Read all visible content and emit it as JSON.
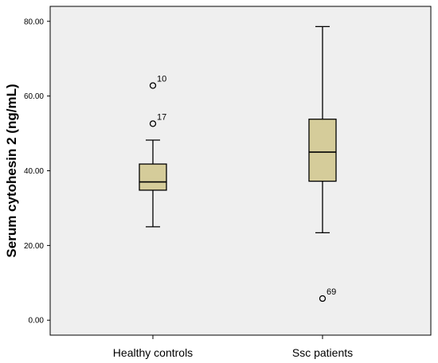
{
  "chart_data": {
    "type": "boxplot",
    "title": "",
    "xlabel": "",
    "ylabel": "Serum cytohesin 2 (ng/mL)",
    "ylim": [
      -4,
      84
    ],
    "yticks": [
      0,
      20,
      40,
      60,
      80
    ],
    "ytick_labels": [
      "0.00",
      "20.00",
      "40.00",
      "60.00",
      "80.00"
    ],
    "grid": false,
    "legend": "none",
    "colors": {
      "plot_bg": "#efefef",
      "box_fill": "#d5cc9a",
      "stroke": "#000000"
    },
    "categories": [
      "Healthy controls",
      "Ssc patients"
    ],
    "boxes": [
      {
        "category": "Healthy controls",
        "whisker_low": 25.0,
        "q1": 34.8,
        "median": 37.0,
        "q3": 41.8,
        "whisker_high": 48.2,
        "outliers": [
          {
            "value": 62.8,
            "label": "10"
          },
          {
            "value": 52.6,
            "label": "17"
          }
        ]
      },
      {
        "category": "Ssc patients",
        "whisker_low": 23.4,
        "q1": 37.2,
        "median": 45.0,
        "q3": 53.8,
        "whisker_high": 78.6,
        "outliers": [
          {
            "value": 5.8,
            "label": "69"
          }
        ]
      }
    ]
  }
}
